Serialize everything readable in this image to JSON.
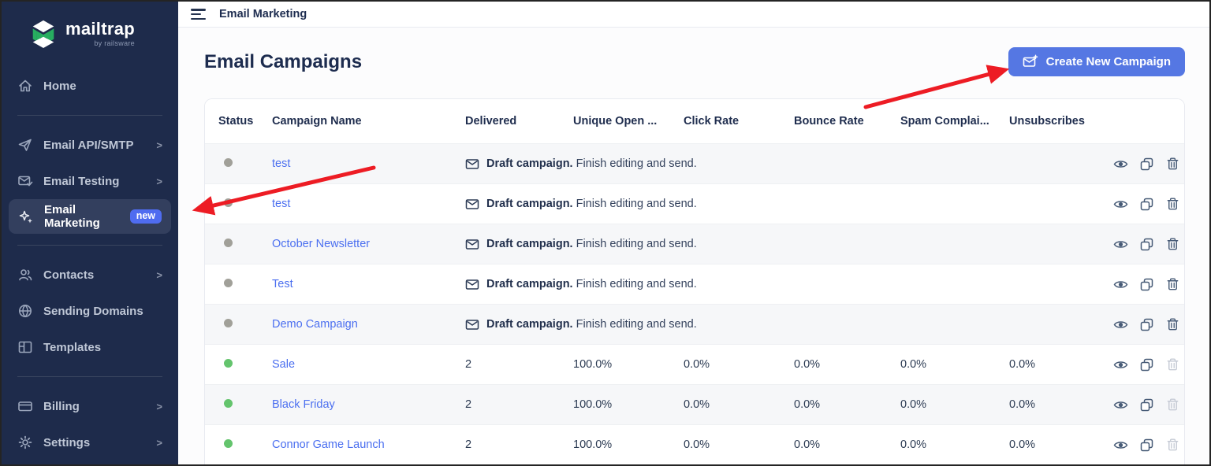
{
  "topbar": {
    "title": "Email Marketing"
  },
  "sidebar": {
    "logo": {
      "name": "mailtrap",
      "byline": "by railsware"
    },
    "groups": [
      {
        "items": [
          {
            "label": "Home",
            "icon": "home"
          }
        ]
      },
      {
        "items": [
          {
            "label": "Email API/SMTP",
            "icon": "paper-plane",
            "chevron": ">"
          },
          {
            "label": "Email Testing",
            "icon": "envelope-check",
            "chevron": ">"
          },
          {
            "label": "Email Marketing",
            "icon": "sparkles",
            "badge": "new",
            "active": true
          }
        ]
      },
      {
        "items": [
          {
            "label": "Contacts",
            "icon": "users",
            "chevron": ">"
          },
          {
            "label": "Sending Domains",
            "icon": "globe"
          },
          {
            "label": "Templates",
            "icon": "template"
          }
        ]
      },
      {
        "items": [
          {
            "label": "Billing",
            "icon": "credit-card",
            "chevron": ">"
          },
          {
            "label": "Settings",
            "icon": "gear",
            "chevron": ">"
          }
        ]
      }
    ]
  },
  "page": {
    "title": "Email Campaigns",
    "create_button_label": "Create New Campaign"
  },
  "table": {
    "headers": {
      "status": "Status",
      "name": "Campaign Name",
      "delivered": "Delivered",
      "unique_open": "Unique Open ...",
      "click": "Click Rate",
      "bounce": "Bounce Rate",
      "spam": "Spam Complai...",
      "unsubscribes": "Unsubscribes"
    },
    "draft_message": {
      "bold": "Draft campaign.",
      "rest": " Finish editing and send."
    },
    "rows": [
      {
        "name": "test",
        "status": "draft"
      },
      {
        "name": "test",
        "status": "draft"
      },
      {
        "name": "October Newsletter",
        "status": "draft"
      },
      {
        "name": "Test",
        "status": "draft"
      },
      {
        "name": "Demo Campaign",
        "status": "draft"
      },
      {
        "name": "Sale",
        "status": "sent",
        "delivered": "2",
        "unique_open": "100.0%",
        "click": "0.0%",
        "bounce": "0.0%",
        "spam": "0.0%",
        "unsubscribes": "0.0%"
      },
      {
        "name": "Black Friday",
        "status": "sent",
        "delivered": "2",
        "unique_open": "100.0%",
        "click": "0.0%",
        "bounce": "0.0%",
        "spam": "0.0%",
        "unsubscribes": "0.0%"
      },
      {
        "name": "Connor Game Launch",
        "status": "sent",
        "delivered": "2",
        "unique_open": "100.0%",
        "click": "0.0%",
        "bounce": "0.0%",
        "spam": "0.0%",
        "unsubscribes": "0.0%"
      }
    ]
  },
  "colors": {
    "accent": "#5577e3",
    "link": "#4b6ff0",
    "annotation_arrow": "#ed1c24",
    "status_draft": "#a1a099",
    "status_sent": "#64c46d",
    "sidebar_bg": "#1e2b4b"
  }
}
